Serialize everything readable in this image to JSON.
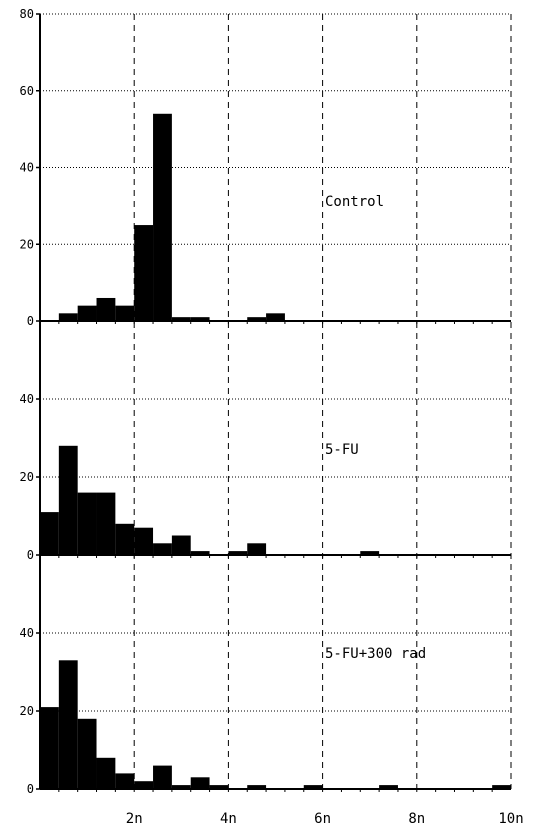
{
  "chart_data": [
    {
      "type": "bar",
      "label": "Control",
      "ylim": [
        0,
        80
      ],
      "yticks": [
        "0",
        "20",
        "40",
        "60",
        "80"
      ],
      "bin_width": 0.4,
      "values": [
        0,
        2,
        4,
        6,
        4,
        25,
        54,
        1,
        1,
        0,
        0,
        1,
        2,
        0,
        0,
        0,
        0,
        0,
        0,
        0,
        0,
        0,
        0,
        0,
        0
      ]
    },
    {
      "type": "bar",
      "label": "5-FU",
      "ylim": [
        0,
        60
      ],
      "yticks": [
        "0",
        "20",
        "40"
      ],
      "bin_width": 0.4,
      "values": [
        11,
        28,
        16,
        16,
        8,
        7,
        3,
        5,
        1,
        0,
        1,
        3,
        0,
        0,
        0,
        0,
        0,
        1,
        0,
        0,
        0,
        0,
        0,
        0,
        0
      ]
    },
    {
      "type": "bar",
      "label": "5-FU+300 rad",
      "ylim": [
        0,
        60
      ],
      "yticks": [
        "0",
        "20",
        "40"
      ],
      "bin_width": 0.4,
      "values": [
        21,
        33,
        18,
        8,
        4,
        2,
        6,
        1,
        3,
        1,
        0,
        1,
        0,
        0,
        1,
        0,
        0,
        0,
        1,
        0,
        0,
        0,
        0,
        0,
        1
      ]
    }
  ],
  "x_axis": {
    "range": [
      0,
      10
    ],
    "ticks": [
      {
        "value": 2,
        "label": "2n"
      },
      {
        "value": 4,
        "label": "4n"
      },
      {
        "value": 6,
        "label": "6n"
      },
      {
        "value": 8,
        "label": "8n"
      },
      {
        "value": 10,
        "label": "10n"
      }
    ]
  }
}
